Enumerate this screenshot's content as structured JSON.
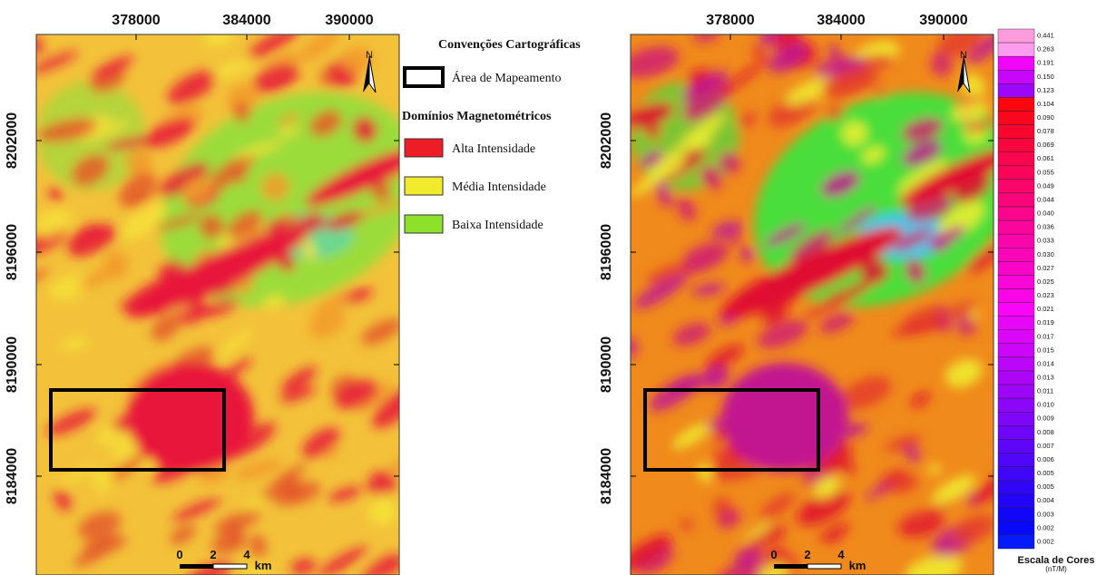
{
  "panels": [
    {
      "x_labels": [
        "378000",
        "384000",
        "390000"
      ],
      "y_labels": [
        "8202000",
        "8196000",
        "8190000",
        "8184000"
      ],
      "scale_bar": [
        "0",
        "2",
        "4",
        "km"
      ],
      "north": "N"
    },
    {
      "x_labels": [
        "378000",
        "384000",
        "390000"
      ],
      "y_labels": [
        "8202000",
        "8196000",
        "8190000",
        "8184000"
      ],
      "scale_bar": [
        "0",
        "2",
        "4",
        "km"
      ],
      "north": "N"
    }
  ],
  "legend": {
    "title": "Convenções Cartográficas",
    "area": "Área de Mapeamento",
    "domains_title": "Domínios Magnetométricos",
    "items": [
      {
        "label": "Alta Intensidade",
        "color": "#ee1c25"
      },
      {
        "label": "Média Intensidade",
        "color": "#f2ea2c"
      },
      {
        "label": "Baixa Intensidade",
        "color": "#8ee12a"
      }
    ]
  },
  "color_scale": {
    "labels": [
      "0.441",
      "0.263",
      "0.191",
      "0.150",
      "0.123",
      "0.104",
      "0.090",
      "0.078",
      "0.069",
      "0.061",
      "0.055",
      "0.049",
      "0.044",
      "0.040",
      "0.036",
      "0.033",
      "0.030",
      "0.027",
      "0.025",
      "0.023",
      "0.021",
      "0.019",
      "0.017",
      "0.015",
      "0.014",
      "0.013",
      "0.011",
      "0.010",
      "0.009",
      "0.008",
      "0.007",
      "0.006",
      "0.005",
      "0.005",
      "0.004",
      "0.003",
      "0.002",
      "0.002"
    ],
    "title": "Escala de Cores",
    "unit": "(nT/M)"
  }
}
